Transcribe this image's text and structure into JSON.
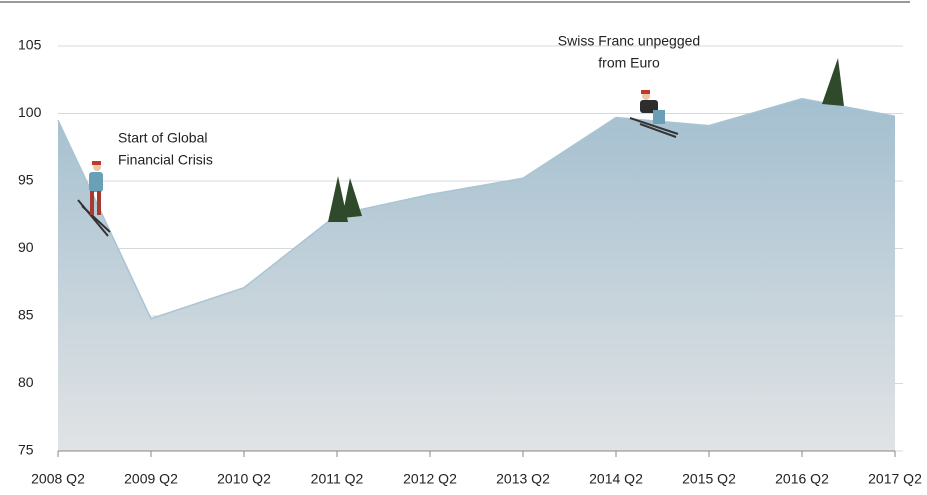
{
  "chart_data": {
    "type": "area",
    "categories": [
      "2008 Q2",
      "2009 Q2",
      "2010 Q2",
      "2011 Q2",
      "2012 Q2",
      "2013 Q2",
      "2014 Q2",
      "2015 Q2",
      "2016 Q2",
      "2017 Q2"
    ],
    "values": [
      99.5,
      84.8,
      87.1,
      92.5,
      94,
      95.2,
      99.7,
      99.1,
      101.1,
      99.8
    ],
    "color": "#a9c4d3",
    "ylim": [
      75,
      105
    ],
    "yticks": [
      75,
      80,
      85,
      90,
      95,
      100,
      105
    ],
    "grid": true,
    "annotations": [
      [
        "Start of Global",
        "Financial Crisis"
      ],
      [
        "Swiss Franc unpegged",
        "from Euro"
      ]
    ]
  }
}
